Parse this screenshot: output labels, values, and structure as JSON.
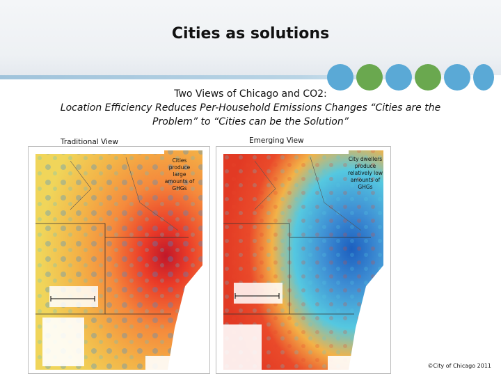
{
  "slide": {
    "title": "Cities as solutions",
    "subtitle_line1": "Two Views of Chicago and CO2:",
    "subtitle_line2": "Location Efficiency Reduces Per-Household Emissions Changes “Cities are the",
    "subtitle_line3": "Problem” to “Cities can be the Solution”",
    "credit": "©City of Chicago 2011"
  },
  "views": {
    "traditional": {
      "label": "Traditional View",
      "callout": [
        "Cities",
        "produce",
        "large",
        "amounts of",
        "GHGs"
      ]
    },
    "emerging": {
      "label": "Emerging View",
      "callout": [
        "City dwellers",
        "produce",
        "relatively low",
        "amounts of",
        "GHGs"
      ]
    }
  },
  "colors": {
    "dot_blue": "#5aa9d6",
    "dot_green": "#6aa84f",
    "map_red": "#e8452a",
    "map_orange": "#f48a3a",
    "map_blue": "#3f8fd4",
    "map_cyan": "#55c8e0"
  }
}
